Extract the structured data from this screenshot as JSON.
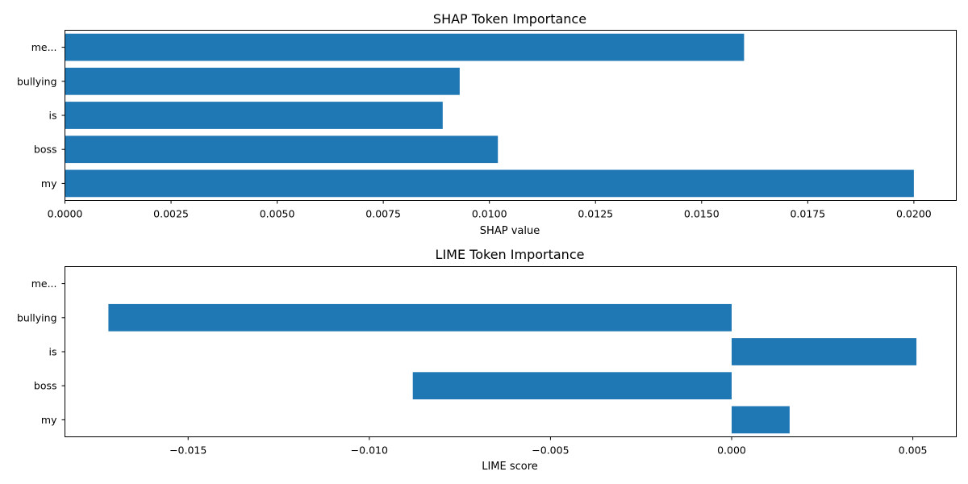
{
  "chart_data": [
    {
      "type": "bar",
      "orientation": "horizontal",
      "title": "SHAP Token Importance",
      "xlabel": "SHAP value",
      "ylabel": "",
      "categories": [
        "me...",
        "bullying",
        "is",
        "boss",
        "my"
      ],
      "values": [
        0.016,
        0.0093,
        0.0089,
        0.0102,
        0.02
      ],
      "xlim": [
        0.0,
        0.021
      ],
      "xticks": [
        "0.0000",
        "0.0025",
        "0.0050",
        "0.0075",
        "0.0100",
        "0.0125",
        "0.0150",
        "0.0175",
        "0.0200"
      ],
      "xtick_values": [
        0.0,
        0.0025,
        0.005,
        0.0075,
        0.01,
        0.0125,
        0.015,
        0.0175,
        0.02
      ],
      "grid": false,
      "bar_color": "#1f77b4"
    },
    {
      "type": "bar",
      "orientation": "horizontal",
      "title": "LIME Token Importance",
      "xlabel": "LIME score",
      "ylabel": "",
      "categories": [
        "me...",
        "bullying",
        "is",
        "boss",
        "my"
      ],
      "values": [
        0.0,
        -0.0172,
        0.0051,
        -0.0088,
        0.0016
      ],
      "xlim": [
        -0.0184,
        0.0062
      ],
      "xticks": [
        "−0.015",
        "−0.010",
        "−0.005",
        "0.000",
        "0.005"
      ],
      "xtick_values": [
        -0.015,
        -0.01,
        -0.005,
        0.0,
        0.005
      ],
      "grid": false,
      "bar_color": "#1f77b4"
    }
  ]
}
